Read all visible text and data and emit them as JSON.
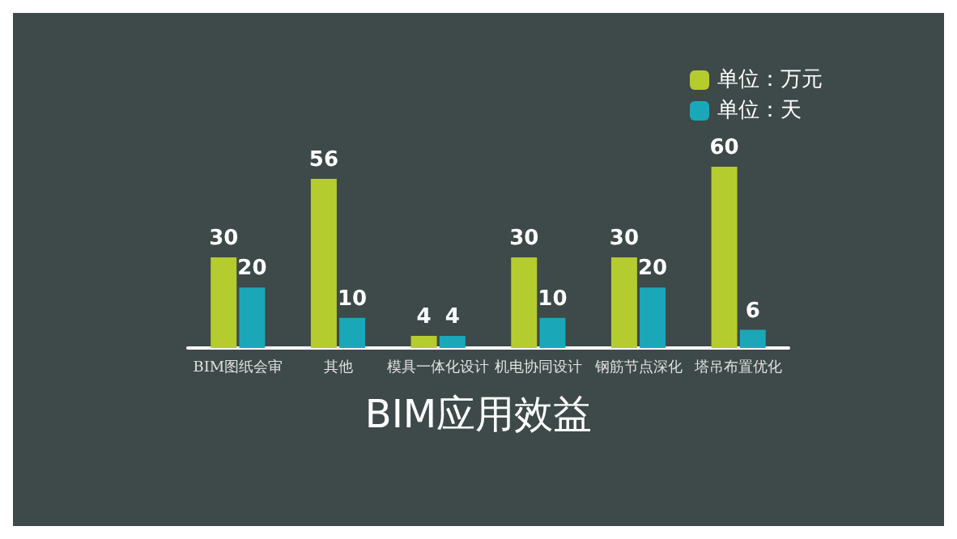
{
  "chart_data": {
    "type": "bar",
    "title": "BIM应用效益",
    "categories": [
      "BIM图纸会审",
      "其他",
      "模具一体化设计",
      "机电协同设计",
      "钢筋节点深化",
      "塔吊布置优化"
    ],
    "series": [
      {
        "name": "单位：万元",
        "color": "#b5cc2e",
        "values": [
          30,
          56,
          4,
          30,
          30,
          60
        ]
      },
      {
        "name": "单位：天",
        "color": "#1aa8b8",
        "values": [
          20,
          10,
          4,
          10,
          20,
          6
        ]
      }
    ],
    "data_labels": true,
    "legend": "top right",
    "grid": false
  }
}
